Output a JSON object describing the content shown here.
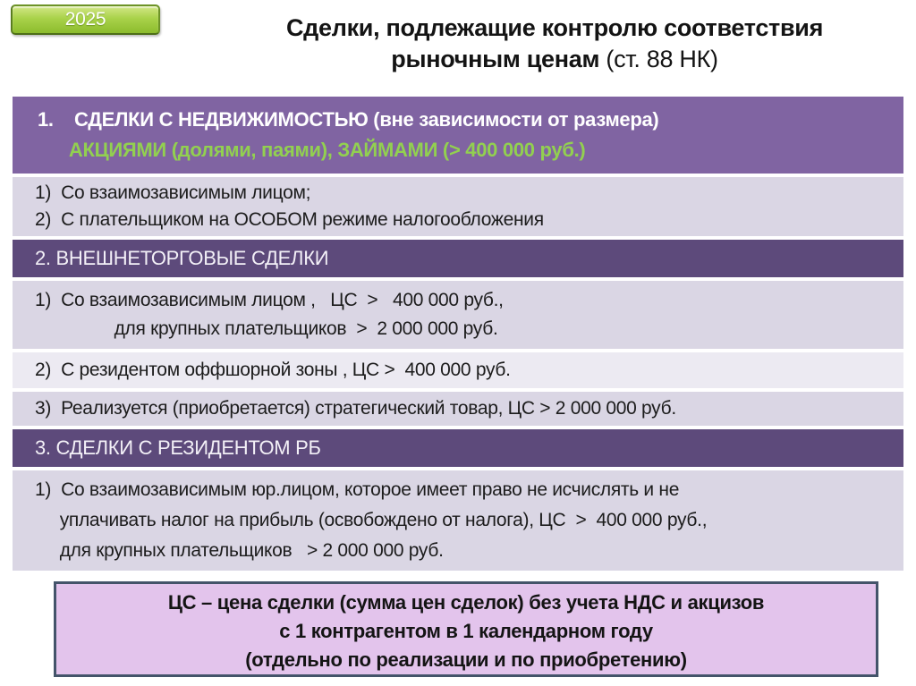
{
  "badge": {
    "label": "2025"
  },
  "title": {
    "line1": "Сделки, подлежащие контролю соответствия",
    "line2_bold": "рыночным ценам",
    "line2_regular": " (ст. 88 НК)"
  },
  "table": {
    "s1": {
      "header_white": "1.    СДЕЛКИ С НЕДВИЖИМОСТЬЮ (вне зависимости от размера)",
      "header_green": "      АКЦИЯМИ (долями, паями), ЗАЙМАМИ (> 400 000 руб.)",
      "row": "1)  Со взаимозависимым лицом;\n2)  С плательщиком на ОСОБОМ режиме налогообложения"
    },
    "s2": {
      "header": "2. ВНЕШНЕТОРГОВЫЕ СДЕЛКИ",
      "rows": [
        "1)  Со взаимозависимым лицом ,   ЦС  >   400 000 руб.,\n                для крупных плательщиков  >  2 000 000 руб.",
        "2)  С резидентом оффшорной зоны , ЦС >  400 000 руб.",
        "3)  Реализуется (приобретается) стратегический товар, ЦС > 2 000 000 руб."
      ]
    },
    "s3": {
      "header": "3. СДЕЛКИ С РЕЗИДЕНТОМ РБ",
      "row": "1)  Со взаимозависимым юр.лицом, которое имеет право не исчислять и не\n     уплачивать налог на прибыль (освобождено от налога), ЦС  >  400 000 руб.,\n     для крупных плательщиков   > 2 000 000 руб."
    }
  },
  "note_box": {
    "line1": "ЦС – цена сделки (сумма цен сделок) без учета НДС и акцизов",
    "line2": "с 1 контрагентом в 1 календарном году",
    "line3": "(отдельно по реализации и по приобретению)"
  },
  "colors": {
    "section1_header_bg": "#8064A2",
    "section_dark_header_bg": "#5D4A7B",
    "row_lavender_bg": "#DAD6E4",
    "row_light_bg": "#ECEAF2",
    "header_green_text": "#92D050",
    "badge_green": "#9CC93E",
    "note_box_bg": "#E3C4EC",
    "note_box_border": "#44546A"
  }
}
